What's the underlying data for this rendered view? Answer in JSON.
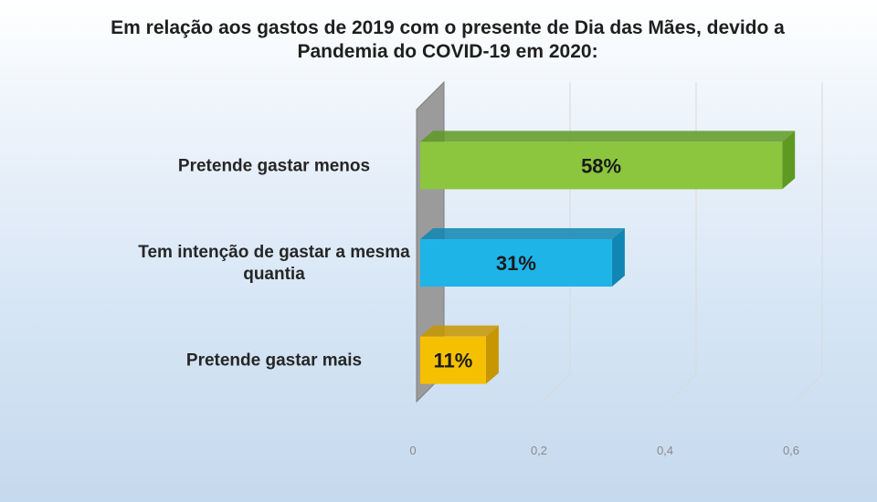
{
  "chart_data": {
    "type": "bar",
    "orientation": "horizontal",
    "title": "Em relação aos gastos de 2019 com o presente de Dia das Mães, devido a Pandemia do COVID-19 em 2020:",
    "categories": [
      "Pretende gastar menos",
      "Tem intenção de gastar a mesma quantia",
      "Pretende gastar mais"
    ],
    "values": [
      0.58,
      0.31,
      0.11
    ],
    "data_labels": [
      "58%",
      "31%",
      "11%"
    ],
    "colors": [
      "#8cc63f",
      "#1fb4e8",
      "#f5c000"
    ],
    "side_colors": [
      "#5e9a22",
      "#0f86b3",
      "#c79600"
    ],
    "xlabel": "",
    "ylabel": "",
    "xlim": [
      0,
      0.6
    ],
    "x_ticks": [
      "0",
      "0,2",
      "0,4",
      "0,6"
    ],
    "grid": true,
    "legend": "none",
    "style": "3d"
  }
}
